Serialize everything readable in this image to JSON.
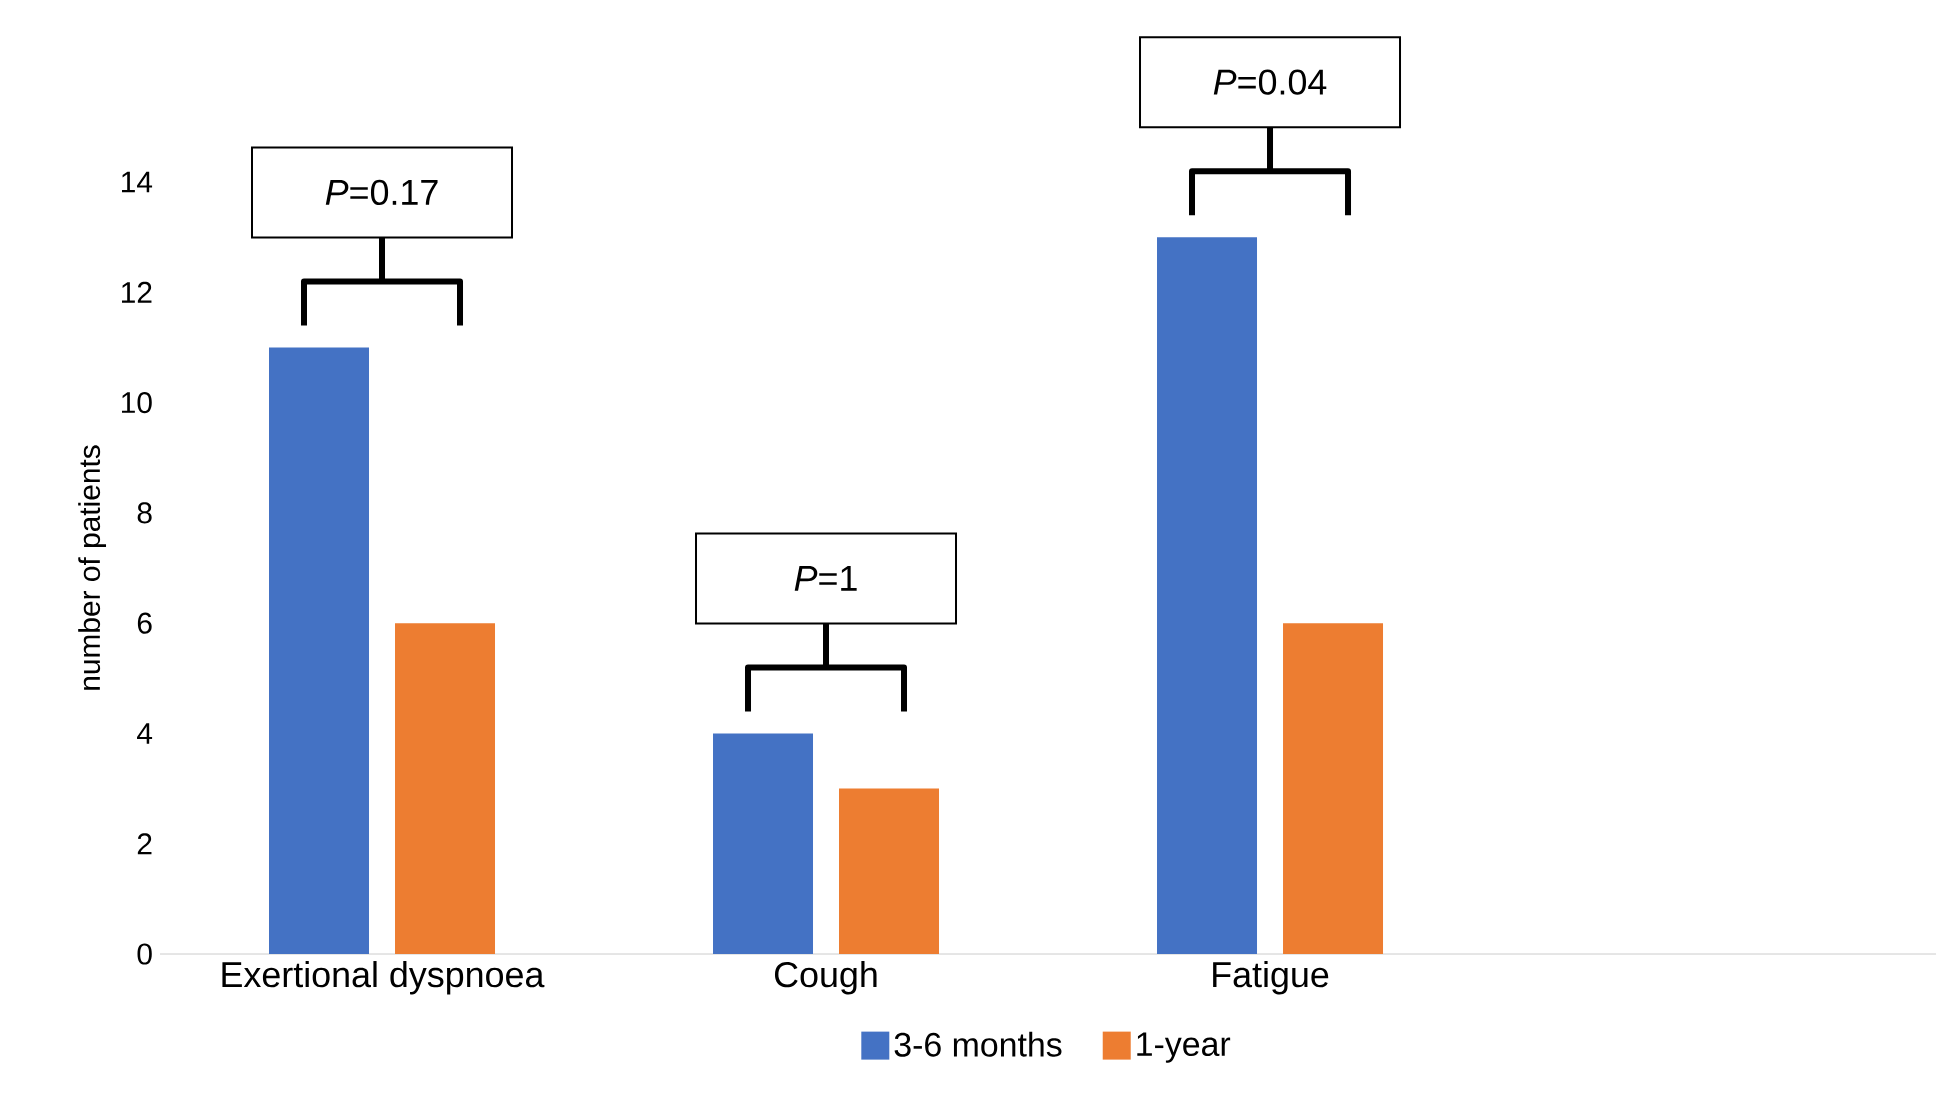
{
  "chart_data": {
    "type": "bar",
    "ylabel": "number of patients",
    "categories": [
      "Exertional dyspnoea",
      "Cough",
      "Fatigue",
      null
    ],
    "series": [
      {
        "name": "3-6 months",
        "color": "#4472c4",
        "values": [
          11,
          4,
          13,
          null
        ]
      },
      {
        "name": "1-year",
        "color": "#ed7d31",
        "values": [
          6,
          3,
          6,
          null
        ]
      }
    ],
    "ylim": [
      0,
      14
    ],
    "yticks": [
      0,
      2,
      4,
      6,
      8,
      10,
      12,
      14
    ],
    "grid": false,
    "legend": "bottom",
    "annotations": [
      "*P*=0.17",
      "*P*=1",
      "*P*=0.04"
    ]
  }
}
